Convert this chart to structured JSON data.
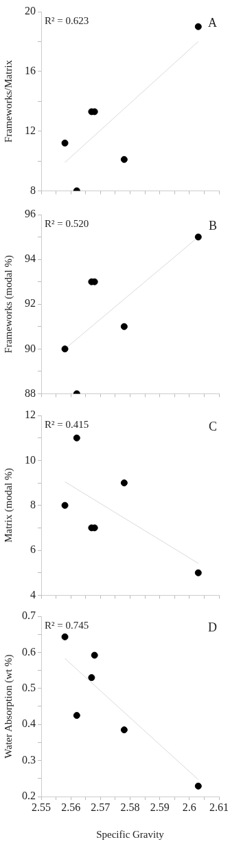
{
  "chart_data": [
    {
      "type": "scatter",
      "ylabel": "Frameworks/Matrix",
      "annotations": [
        "R² = 0.623",
        "A"
      ],
      "xlim": [
        2.55,
        2.61
      ],
      "xticks": [
        {
          "value": 2.55,
          "label": null
        },
        {
          "value": 2.555,
          "label": null
        },
        {
          "value": 2.56,
          "label": null
        },
        {
          "value": 2.565,
          "label": null
        },
        {
          "value": 2.57,
          "label": null
        },
        {
          "value": 2.575,
          "label": null
        },
        {
          "value": 2.58,
          "label": null
        },
        {
          "value": 2.585,
          "label": null
        },
        {
          "value": 2.59,
          "label": null
        },
        {
          "value": 2.595,
          "label": null
        },
        {
          "value": 2.6,
          "label": null
        },
        {
          "value": 2.605,
          "label": null
        },
        {
          "value": 2.61,
          "label": null
        }
      ],
      "ylim": [
        8,
        20
      ],
      "yticks": [
        8,
        {
          "value": 10,
          "label": null
        },
        12,
        {
          "value": 14,
          "label": null
        },
        16,
        {
          "value": 18,
          "label": null
        },
        20
      ],
      "tick_labels": "y",
      "marker": "circle",
      "grid": false,
      "legend": false,
      "series": [
        {
          "type": "scatter",
          "color": "#000000",
          "x": [
            2.558,
            2.562,
            2.567,
            2.568,
            2.578,
            2.603
          ],
          "values": [
            11.2,
            8.0,
            13.3,
            13.3,
            10.1,
            19.0
          ]
        },
        {
          "type": "line",
          "color": "#d9d9d9",
          "marker": "none",
          "x": [
            2.558,
            2.603
          ],
          "values": [
            9.9,
            18.0
          ]
        }
      ]
    },
    {
      "type": "scatter",
      "ylabel": "Frameworks (modal %)",
      "annotations": [
        "R² = 0.520",
        "B"
      ],
      "xlim": [
        2.55,
        2.61
      ],
      "xticks": [
        {
          "value": 2.55,
          "label": null
        },
        {
          "value": 2.555,
          "label": null
        },
        {
          "value": 2.56,
          "label": null
        },
        {
          "value": 2.565,
          "label": null
        },
        {
          "value": 2.57,
          "label": null
        },
        {
          "value": 2.575,
          "label": null
        },
        {
          "value": 2.58,
          "label": null
        },
        {
          "value": 2.585,
          "label": null
        },
        {
          "value": 2.59,
          "label": null
        },
        {
          "value": 2.595,
          "label": null
        },
        {
          "value": 2.6,
          "label": null
        },
        {
          "value": 2.605,
          "label": null
        },
        {
          "value": 2.61,
          "label": null
        }
      ],
      "ylim": [
        88,
        96
      ],
      "yticks": [
        88,
        {
          "value": 89,
          "label": null
        },
        90,
        {
          "value": 91,
          "label": null
        },
        92,
        {
          "value": 93,
          "label": null
        },
        94,
        {
          "value": 95,
          "label": null
        },
        96
      ],
      "tick_labels": "y",
      "marker": "circle",
      "grid": false,
      "legend": false,
      "series": [
        {
          "type": "scatter",
          "color": "#000000",
          "x": [
            2.558,
            2.562,
            2.567,
            2.568,
            2.578,
            2.603
          ],
          "values": [
            90,
            88,
            93,
            93,
            91,
            95
          ]
        },
        {
          "type": "line",
          "color": "#d9d9d9",
          "marker": "none",
          "x": [
            2.558,
            2.603
          ],
          "values": [
            90.0,
            95.0
          ]
        }
      ]
    },
    {
      "type": "scatter",
      "ylabel": "Matrix (modal %)",
      "annotations": [
        "R² = 0.415",
        "C"
      ],
      "xlim": [
        2.55,
        2.61
      ],
      "xticks": [
        {
          "value": 2.55,
          "label": null
        },
        {
          "value": 2.555,
          "label": null
        },
        {
          "value": 2.56,
          "label": null
        },
        {
          "value": 2.565,
          "label": null
        },
        {
          "value": 2.57,
          "label": null
        },
        {
          "value": 2.575,
          "label": null
        },
        {
          "value": 2.58,
          "label": null
        },
        {
          "value": 2.585,
          "label": null
        },
        {
          "value": 2.59,
          "label": null
        },
        {
          "value": 2.595,
          "label": null
        },
        {
          "value": 2.6,
          "label": null
        },
        {
          "value": 2.605,
          "label": null
        },
        {
          "value": 2.61,
          "label": null
        }
      ],
      "ylim": [
        4,
        12
      ],
      "yticks": [
        4,
        {
          "value": 5,
          "label": null
        },
        6,
        {
          "value": 7,
          "label": null
        },
        8,
        {
          "value": 9,
          "label": null
        },
        10,
        {
          "value": 11,
          "label": null
        },
        12
      ],
      "tick_labels": "y",
      "marker": "circle",
      "grid": false,
      "legend": false,
      "series": [
        {
          "type": "scatter",
          "color": "#000000",
          "x": [
            2.558,
            2.562,
            2.567,
            2.568,
            2.578,
            2.603
          ],
          "values": [
            8,
            11,
            7,
            7,
            9,
            5
          ]
        },
        {
          "type": "line",
          "color": "#d9d9d9",
          "marker": "none",
          "x": [
            2.558,
            2.603
          ],
          "values": [
            9.05,
            5.42
          ]
        }
      ]
    },
    {
      "type": "scatter",
      "xlabel": "Specific Gravity",
      "ylabel": "Water Absorption (wt %)",
      "annotations": [
        "R² = 0.745",
        "D"
      ],
      "xlim": [
        2.55,
        2.61
      ],
      "xticks": [
        2.55,
        {
          "value": 2.555,
          "label": null
        },
        2.56,
        {
          "value": 2.565,
          "label": null
        },
        2.57,
        {
          "value": 2.575,
          "label": null
        },
        2.58,
        {
          "value": 2.585,
          "label": null
        },
        2.59,
        {
          "value": 2.595,
          "label": null
        },
        2.6,
        {
          "value": 2.605,
          "label": null
        },
        2.61
      ],
      "ylim": [
        0.2,
        0.7
      ],
      "yticks": [
        0.2,
        {
          "value": 0.25,
          "label": null
        },
        0.3,
        {
          "value": 0.35,
          "label": null
        },
        0.4,
        {
          "value": 0.45,
          "label": null
        },
        0.5,
        {
          "value": 0.55,
          "label": null
        },
        0.6,
        {
          "value": 0.65,
          "label": null
        },
        0.7
      ],
      "marker": "circle",
      "grid": false,
      "legend": false,
      "series": [
        {
          "type": "scatter",
          "color": "#000000",
          "x": [
            2.558,
            2.562,
            2.567,
            2.568,
            2.578,
            2.603
          ],
          "values": [
            0.643,
            0.425,
            0.53,
            0.592,
            0.385,
            0.229
          ]
        },
        {
          "type": "line",
          "color": "#d9d9d9",
          "marker": "none",
          "x": [
            2.558,
            2.603
          ],
          "values": [
            0.583,
            0.247
          ]
        }
      ]
    }
  ]
}
